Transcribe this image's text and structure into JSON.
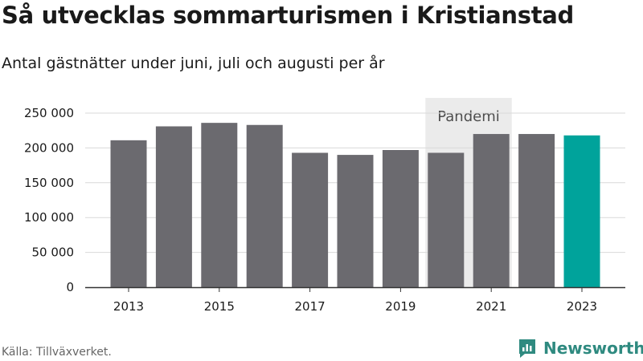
{
  "chart_data": {
    "type": "bar",
    "title": "Så utvecklas sommarturismen i Kristianstad",
    "subtitle": "Antal gästnätter under juni, juli och augusti per år",
    "categories": [
      "2013",
      "2014",
      "2015",
      "2016",
      "2017",
      "2018",
      "2019",
      "2020",
      "2021",
      "2022",
      "2023"
    ],
    "values": [
      211000,
      231000,
      236000,
      233000,
      193000,
      190000,
      197000,
      193000,
      220000,
      220000,
      218000
    ],
    "x_tick_labels": [
      "2013",
      "2015",
      "2017",
      "2019",
      "2021",
      "2023"
    ],
    "y_tick_labels": [
      "0",
      "50 000",
      "100 000",
      "150 000",
      "200 000",
      "250 000"
    ],
    "y_ticks": [
      0,
      50000,
      100000,
      150000,
      200000,
      250000
    ],
    "ylim": [
      0,
      250000
    ],
    "grid": true,
    "bar_color": "#6b6a6f",
    "highlight_color": "#00a39b",
    "highlight_category": "2023",
    "band": {
      "label": "Pandemi",
      "from": "2020",
      "to": "2021",
      "color": "#ebebeb"
    }
  },
  "footer": {
    "source": "Källa: Tillväxverket.",
    "brand": "Newsworthy",
    "brand_color": "#2f8a80"
  }
}
